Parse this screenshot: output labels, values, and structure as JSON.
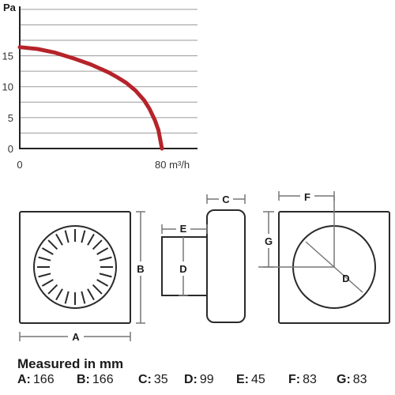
{
  "chart_data": {
    "type": "line",
    "title": "",
    "ylabel": "Pa",
    "xlabel": "",
    "x_tick_labels": [
      "0",
      "80 m³/h"
    ],
    "y_tick_labels": [
      "0",
      "5",
      "10",
      "15"
    ],
    "xlim": [
      0,
      100
    ],
    "ylim": [
      0,
      23
    ],
    "grid": true,
    "series": [
      {
        "color": "#b5242a",
        "x": [
          0,
          10,
          20,
          30,
          40,
          50,
          55,
          60,
          65,
          70,
          73,
          76,
          78,
          80
        ],
        "y": [
          16.4,
          16.1,
          15.5,
          14.6,
          13.6,
          12.3,
          11.5,
          10.6,
          9.4,
          7.8,
          6.4,
          4.6,
          3.0,
          0
        ]
      }
    ]
  },
  "diagram": {
    "labels": {
      "a": "A",
      "b": "B",
      "c": "C",
      "d_side": "D",
      "d_back": "D",
      "e": "E",
      "f": "F",
      "g": "G"
    }
  },
  "measurements": {
    "title": "Measured in mm",
    "items": [
      {
        "key": "A:",
        "value": "166"
      },
      {
        "key": "B:",
        "value": "166"
      },
      {
        "key": "C:",
        "value": "35"
      },
      {
        "key": "D:",
        "value": "99"
      },
      {
        "key": "E:",
        "value": "45"
      },
      {
        "key": "F:",
        "value": "83"
      },
      {
        "key": "G:",
        "value": "83"
      }
    ]
  },
  "colors": {
    "curve": "#b5242a",
    "grid": "#9a9a9a",
    "outline": "#2a2a2a",
    "dimension": "#777777"
  }
}
